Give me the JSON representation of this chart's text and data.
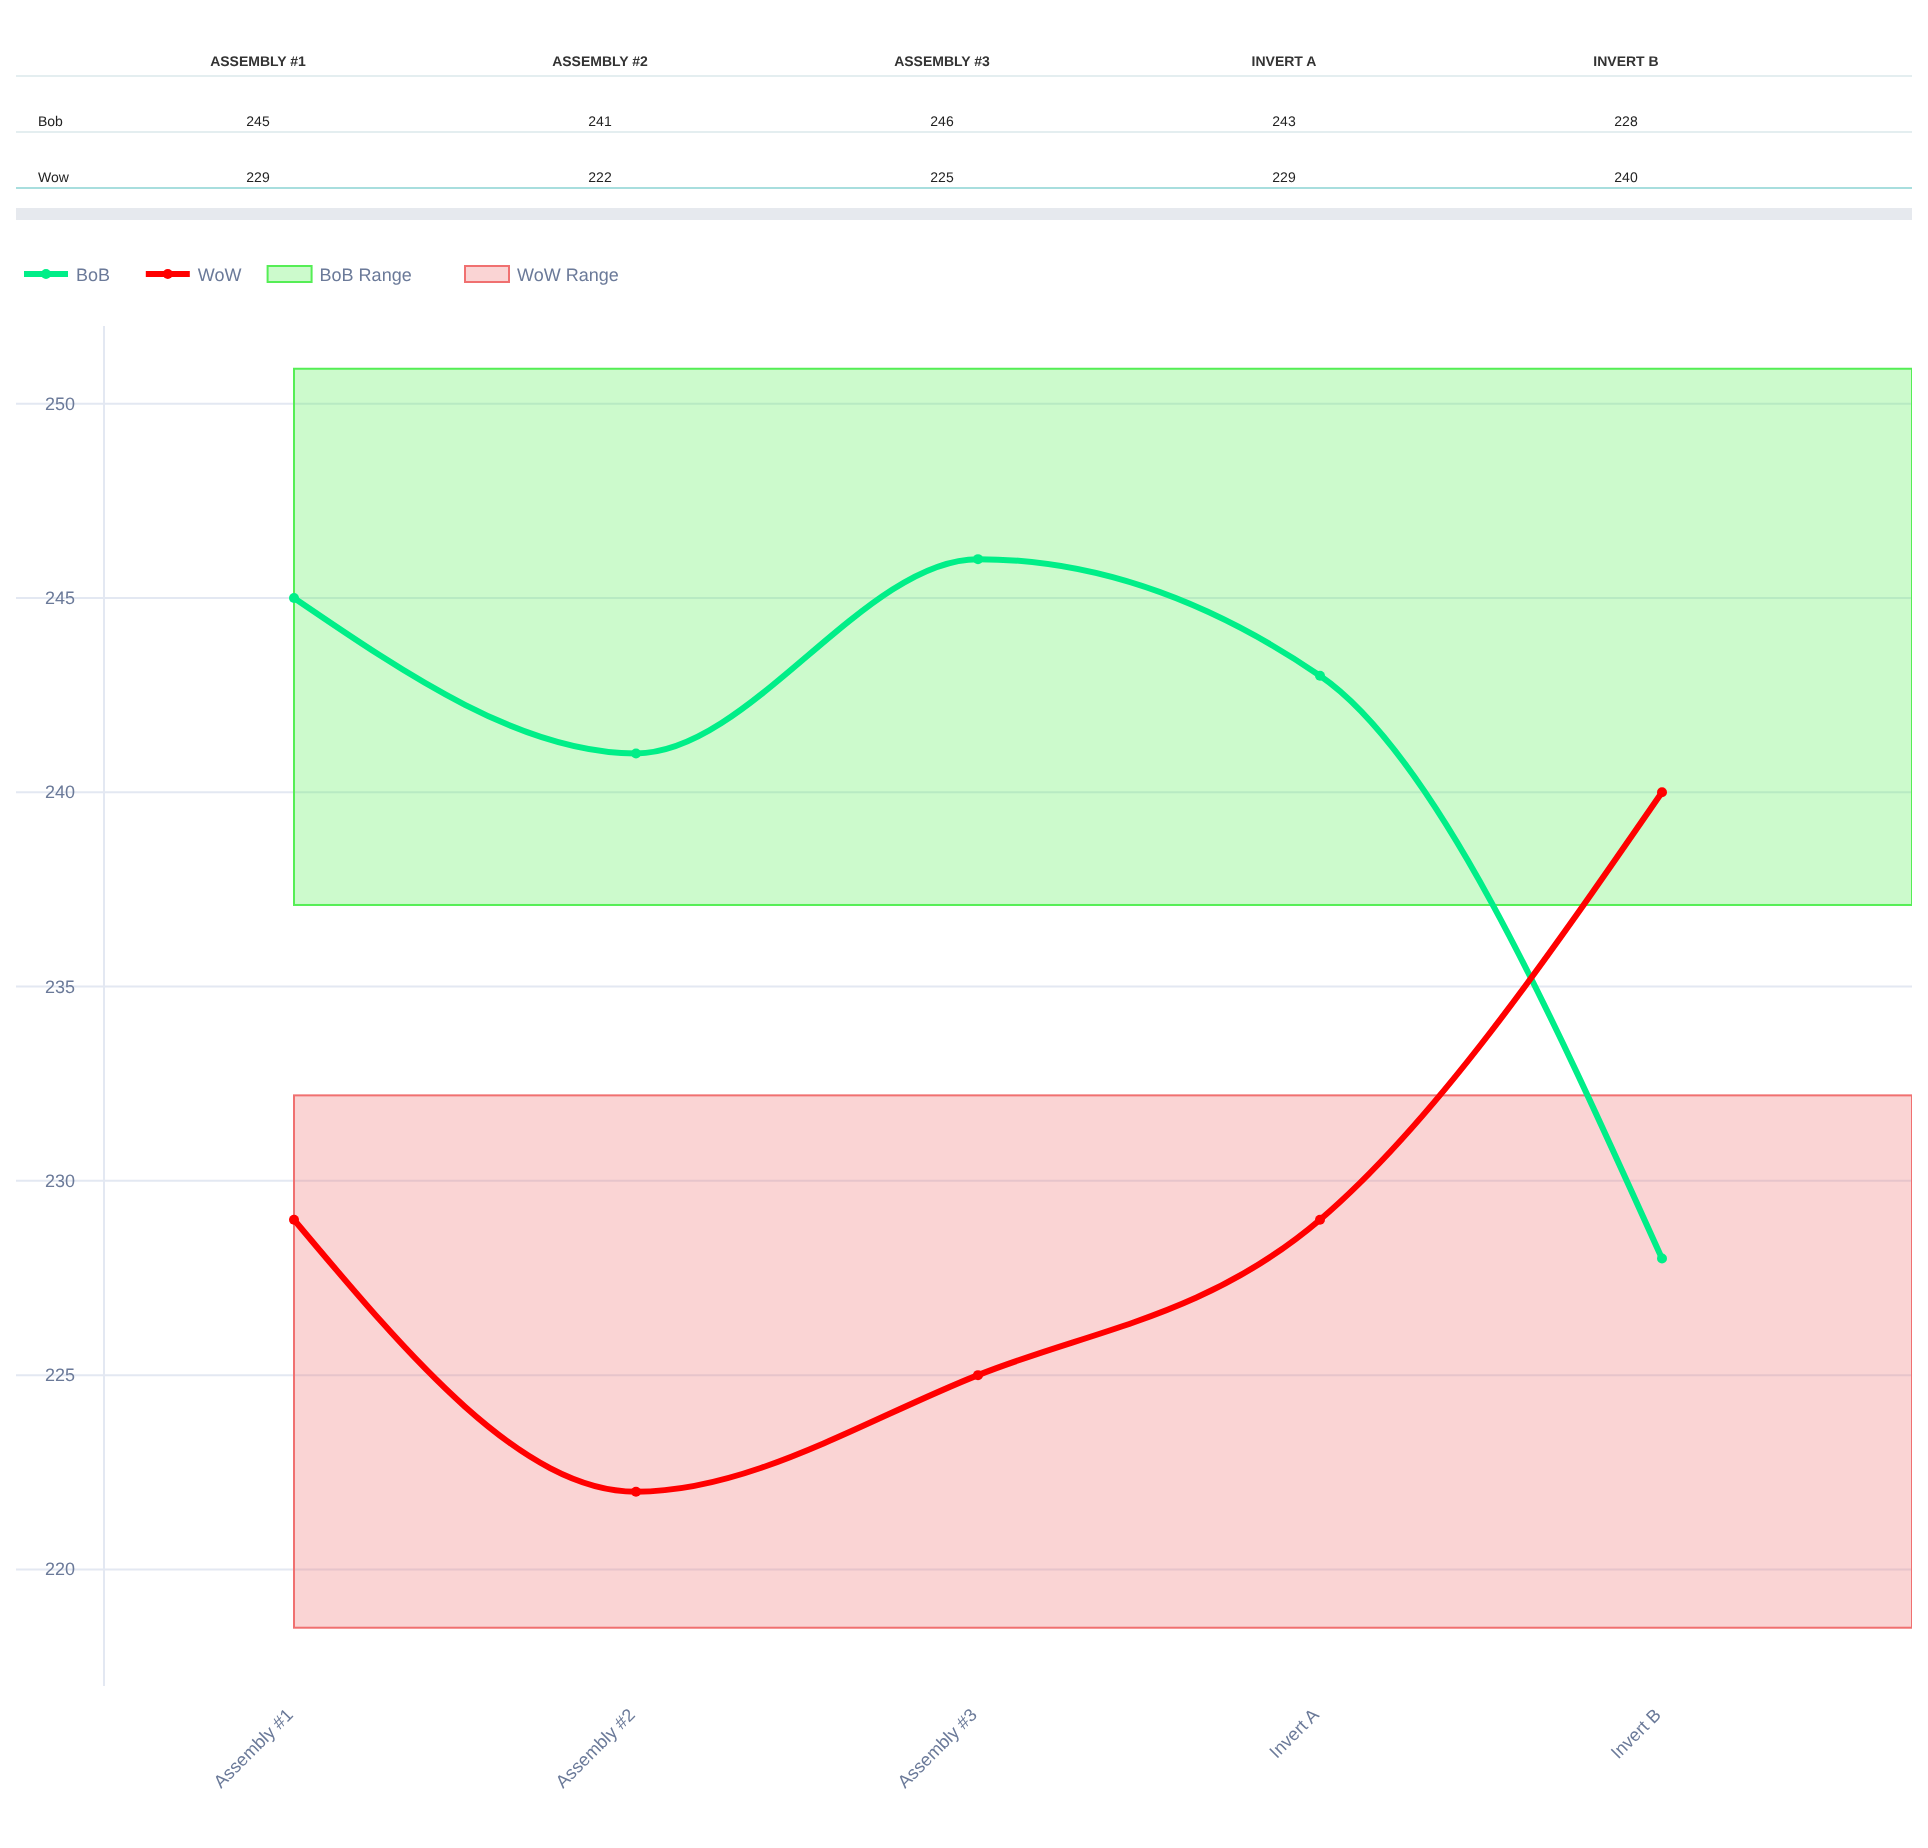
{
  "chart_data": {
    "type": "line",
    "categories": [
      "Assembly #1",
      "Assembly #2",
      "Assembly #3",
      "Invert A",
      "Invert B"
    ],
    "series": [
      {
        "name": "BoB",
        "color": "#00ee88",
        "values": [
          245,
          241,
          246,
          243,
          228
        ]
      },
      {
        "name": "WoW",
        "color": "#ff0000",
        "values": [
          229,
          222,
          225,
          229,
          240
        ]
      }
    ],
    "bands": [
      {
        "axis": "y",
        "from": 237.1,
        "to": 250.9,
        "label": "BoB Range",
        "color": "#55ee55"
      },
      {
        "axis": "y",
        "from": 218.5,
        "to": 232.2,
        "label": "WoW Range",
        "color": "#f07070"
      }
    ],
    "annotations": [
      "ASSEMBLY #1",
      "ASSEMBLY #2",
      "ASSEMBLY #3",
      "INVERT A",
      "INVERT B",
      "Bob",
      "Wow"
    ],
    "data_labels": true,
    "ylim": [
      217,
      252
    ],
    "yticks": [
      220,
      225,
      230,
      235,
      240,
      245,
      250
    ],
    "grid": "y",
    "legend": "top left",
    "marker": "circle",
    "line_style": "solid"
  }
}
